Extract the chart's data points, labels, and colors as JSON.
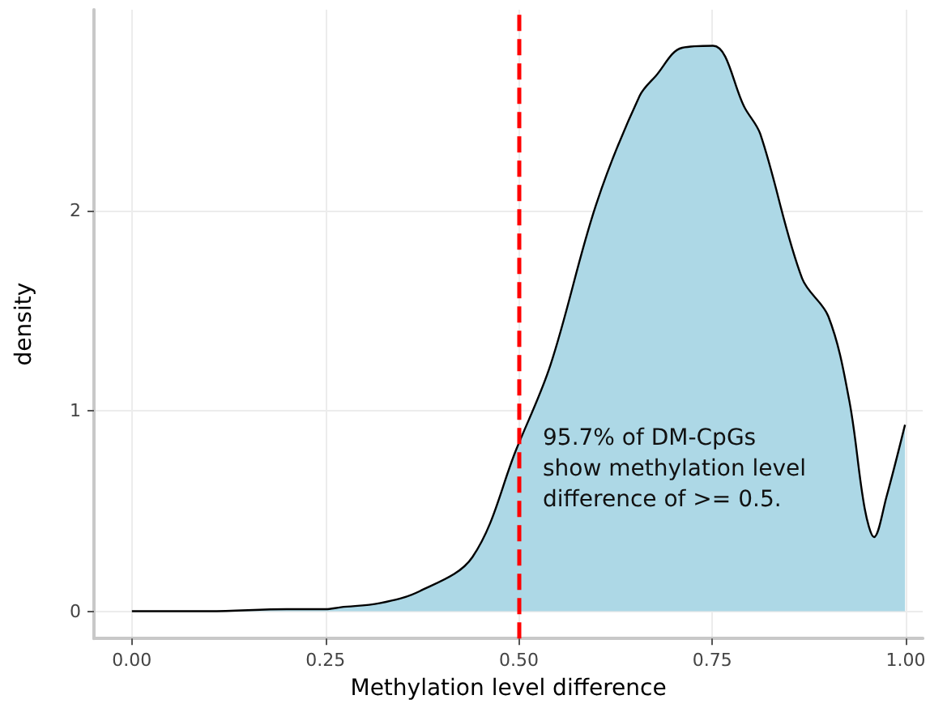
{
  "chart_data": {
    "type": "area",
    "xlabel": "Methylation level difference",
    "ylabel": "density",
    "x": [
      0,
      0.1,
      0.2,
      0.25,
      0.27,
      0.32,
      0.372,
      0.44,
      0.497,
      0.541,
      0.6,
      0.656,
      0.677,
      0.711,
      0.751,
      0.792,
      0.812,
      0.866,
      0.9,
      0.927,
      0.947,
      0.959,
      0.975,
      0.999
    ],
    "series": [
      {
        "color": "#add8e6",
        "values": [
          0,
          0,
          0.01,
          0.01,
          0.02,
          0.04,
          0.1,
          0.27,
          0.81,
          1.23,
          2.03,
          2.57,
          2.67,
          2.81,
          2.82,
          2.51,
          2.38,
          1.66,
          1.47,
          1.05,
          0.51,
          0.37,
          0.57,
          0.93
        ]
      }
    ],
    "xlim": [
      -0.049,
      1.022
    ],
    "ylim": [
      -0.136,
      3.0
    ],
    "xticks": [
      {
        "value": 0,
        "label": "0.00"
      },
      {
        "value": 0.25,
        "label": "0.25"
      },
      {
        "value": 0.5,
        "label": "0.50"
      },
      {
        "value": 0.75,
        "label": "0.75"
      },
      {
        "value": 1,
        "label": "1.00"
      }
    ],
    "yticks": [
      0,
      1,
      2
    ],
    "grid": true,
    "ref_lines": [
      {
        "axis": "x",
        "value": 0.5,
        "color": "#ff0000",
        "line_style": "dashed"
      }
    ],
    "annotations": [
      "95.7% of DM-CpGs\nshow methylation level\ndifference of >= 0.5."
    ]
  }
}
